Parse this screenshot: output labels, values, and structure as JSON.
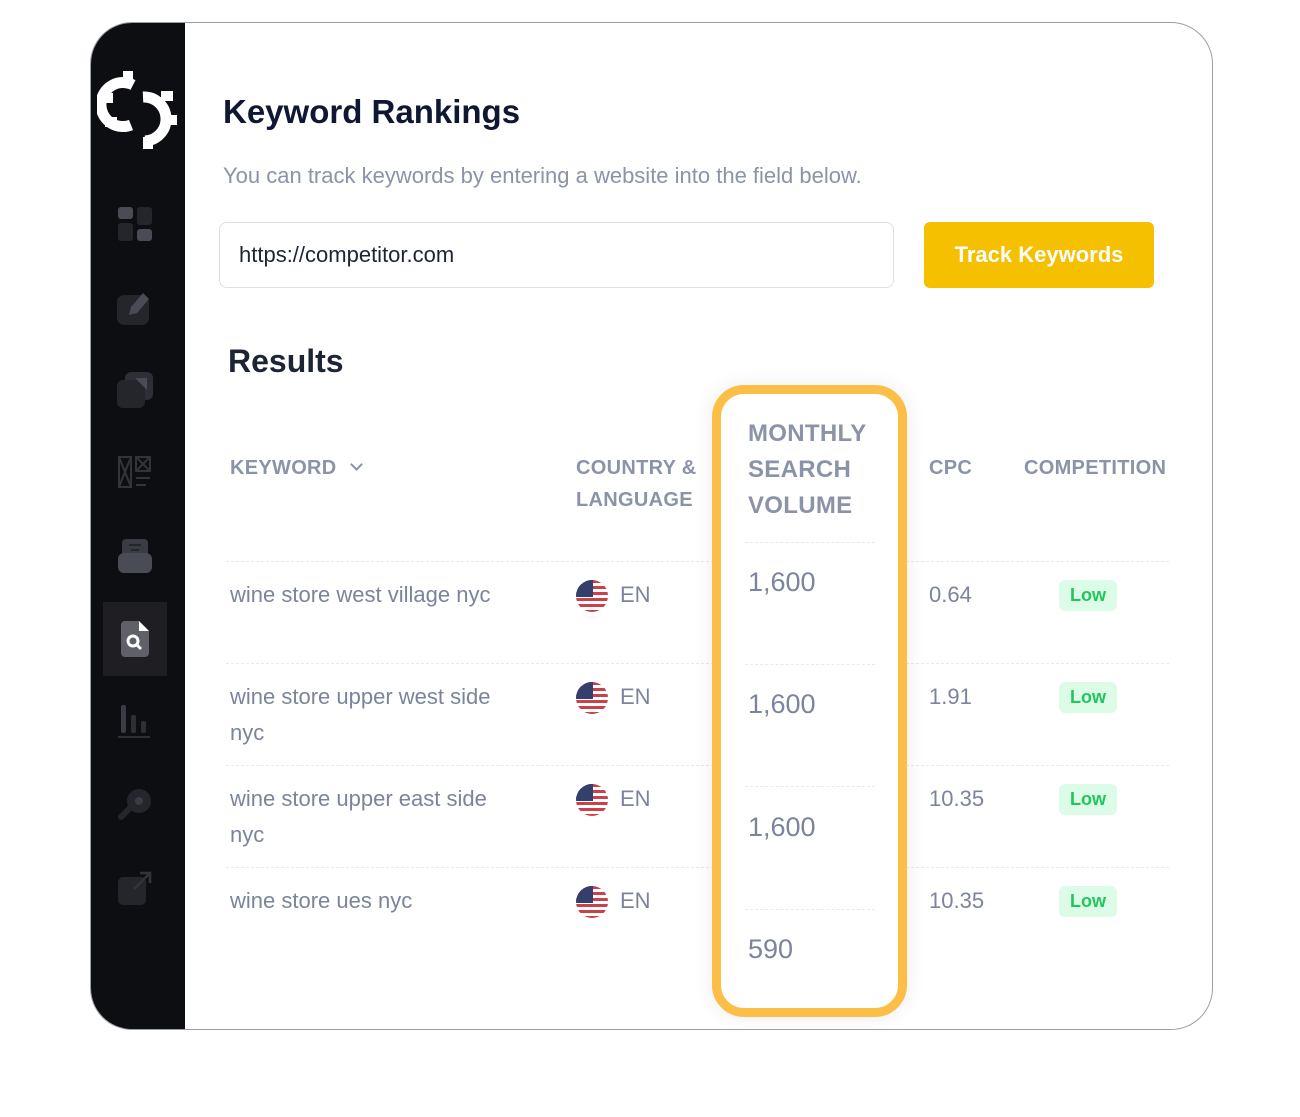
{
  "sidebar": {
    "items": [
      {
        "icon": "dashboard-icon"
      },
      {
        "icon": "edit-icon"
      },
      {
        "icon": "copy-icon"
      },
      {
        "icon": "layout-icon"
      },
      {
        "icon": "inbox-icon"
      },
      {
        "icon": "search-document-icon",
        "active": true
      },
      {
        "icon": "bar-chart-icon"
      },
      {
        "icon": "key-icon"
      },
      {
        "icon": "external-link-icon"
      }
    ]
  },
  "header": {
    "title": "Keyword Rankings",
    "subtitle": "You can track keywords by entering a website into the field below."
  },
  "form": {
    "url_value": "https://competitor.com",
    "button_label": "Track Keywords"
  },
  "results": {
    "title": "Results",
    "columns": {
      "keyword": "KEYWORD",
      "country": "COUNTRY &",
      "language": "LANGUAGE",
      "msv1": "MONTHLY",
      "msv2": "SEARCH",
      "msv3": "VOLUME",
      "cpc": "CPC",
      "competition": "COMPETITION"
    },
    "rows": [
      {
        "keyword1": "wine store west village nyc",
        "keyword2": "",
        "lang": "EN",
        "volume": "1,600",
        "cpc": "0.64",
        "competition": "Low"
      },
      {
        "keyword1": "wine store upper west side",
        "keyword2": "nyc",
        "lang": "EN",
        "volume": "1,600",
        "cpc": "1.91",
        "competition": "Low"
      },
      {
        "keyword1": "wine store upper east side",
        "keyword2": "nyc",
        "lang": "EN",
        "volume": "1,600",
        "cpc": "10.35",
        "competition": "Low"
      },
      {
        "keyword1": "wine store ues nyc",
        "keyword2": "",
        "lang": "EN",
        "volume": "590",
        "cpc": "10.35",
        "competition": "Low"
      }
    ]
  },
  "colors": {
    "accent": "#f5c000",
    "highlight": "#fbbf47",
    "sidebar": "#0d0e12",
    "badge_bg": "#dcfce7",
    "badge_text": "#22c55e"
  }
}
